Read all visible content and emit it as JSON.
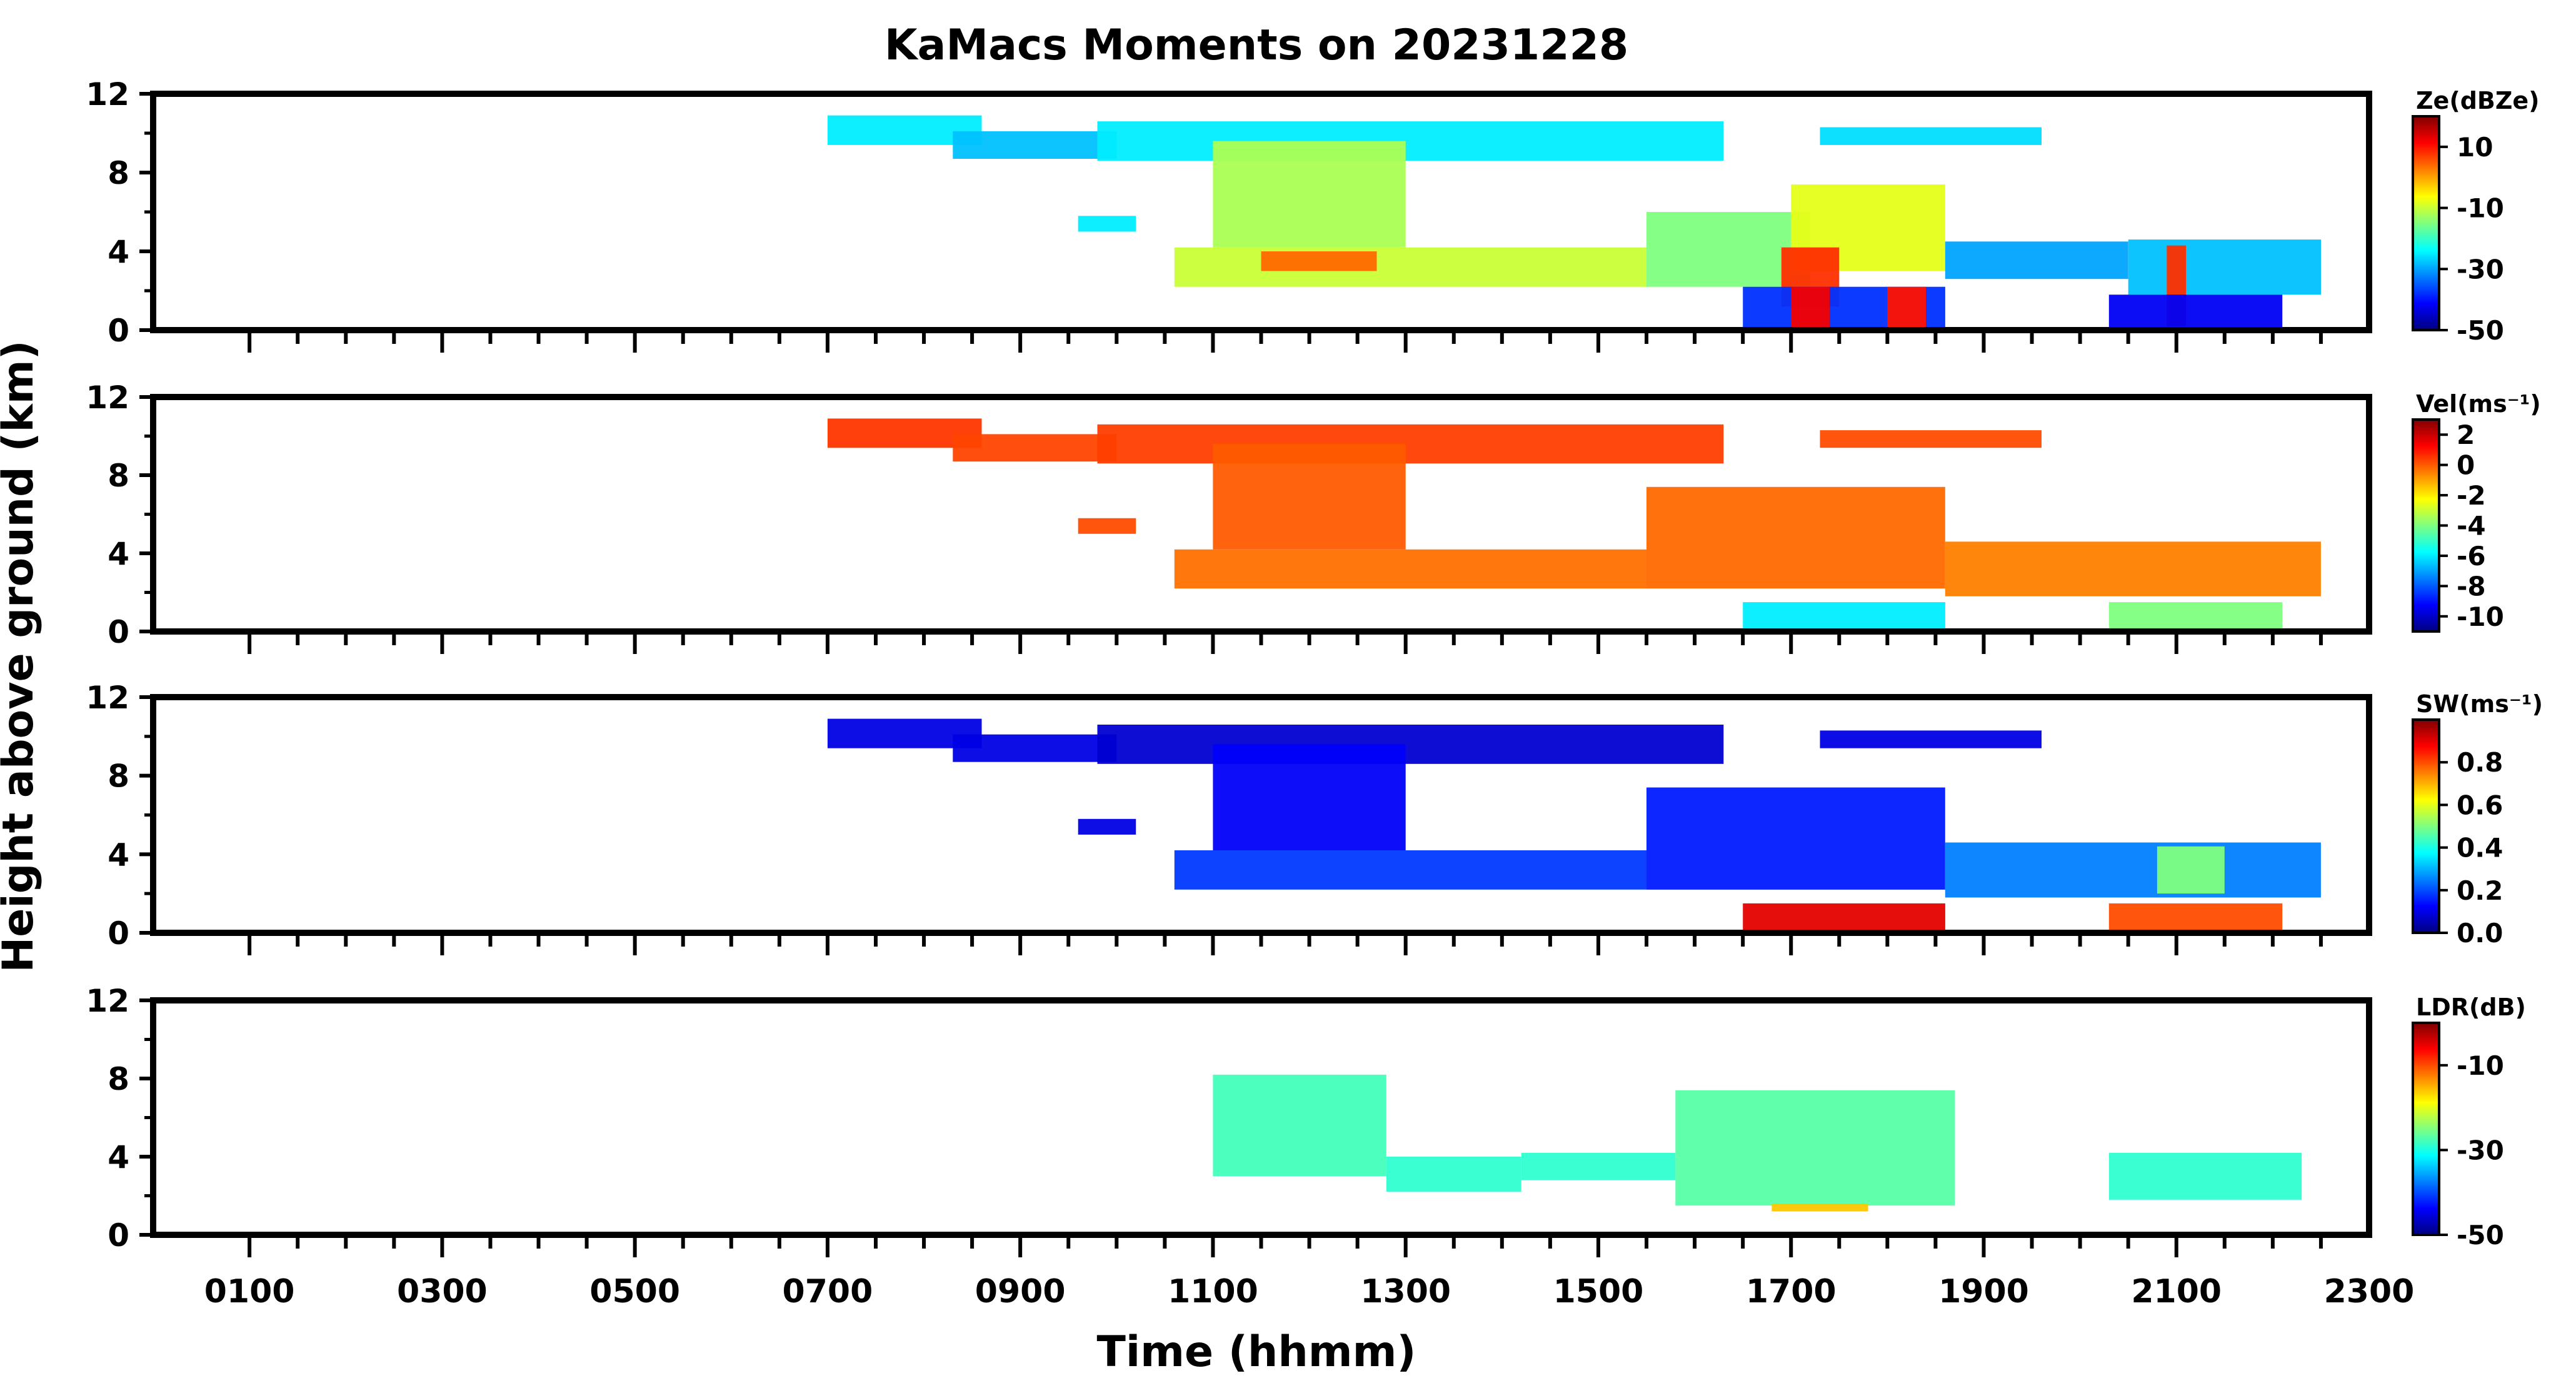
{
  "chart_data": {
    "type": "heatmap",
    "title": "KaMacs Moments on 20231228",
    "xlabel": "Time (hhmm)",
    "ylabel": "Height above ground (km)",
    "x_tick_labels": [
      "0100",
      "0300",
      "0500",
      "0700",
      "0900",
      "1100",
      "1300",
      "1500",
      "1700",
      "1900",
      "2100",
      "2300"
    ],
    "x_tick_hours": [
      1,
      3,
      5,
      7,
      9,
      11,
      13,
      15,
      17,
      19,
      21,
      23
    ],
    "xlim_hours": [
      0,
      23
    ],
    "ylim_km": [
      0,
      12
    ],
    "y_tick_labels": [
      "0",
      "4",
      "8",
      "12"
    ],
    "y_tick_values": [
      0,
      4,
      8,
      12
    ],
    "colormap": "jet",
    "colormap_colors": [
      "#00007f",
      "#0000ff",
      "#007fff",
      "#00ffff",
      "#7fff7f",
      "#ffff00",
      "#ff7f00",
      "#ff0000",
      "#7f0000"
    ],
    "panels": [
      {
        "name": "reflectivity",
        "colorbar_label": "Ze(dBZe)",
        "vmin": -50,
        "vmax": 20,
        "colorbar_ticks": [
          -50,
          -30,
          -10,
          10
        ],
        "colorbar_tick_labels": [
          "-50",
          "-30",
          "-10",
          "10"
        ],
        "echoes": [
          {
            "t0": 7.0,
            "t1": 8.6,
            "z0": 9.4,
            "z1": 10.9,
            "v": -25
          },
          {
            "t0": 8.3,
            "t1": 10.0,
            "z0": 8.7,
            "z1": 10.1,
            "v": -28
          },
          {
            "t0": 9.8,
            "t1": 16.3,
            "z0": 8.6,
            "z1": 10.6,
            "v": -25
          },
          {
            "t0": 11.0,
            "t1": 13.0,
            "z0": 4.2,
            "z1": 9.6,
            "v": -12
          },
          {
            "t0": 10.6,
            "t1": 15.5,
            "z0": 2.2,
            "z1": 4.2,
            "v": -10
          },
          {
            "t0": 11.5,
            "t1": 12.7,
            "z0": 3.0,
            "z1": 4.0,
            "v": 4
          },
          {
            "t0": 15.5,
            "t1": 17.2,
            "z0": 2.2,
            "z1": 6.0,
            "v": -15
          },
          {
            "t0": 17.0,
            "t1": 18.6,
            "z0": 3.0,
            "z1": 7.4,
            "v": -8
          },
          {
            "t0": 16.9,
            "t1": 17.5,
            "z0": 1.2,
            "z1": 4.2,
            "v": 8
          },
          {
            "t0": 16.5,
            "t1": 18.6,
            "z0": 0.1,
            "z1": 2.2,
            "v": -38
          },
          {
            "t0": 17.0,
            "t1": 17.4,
            "z0": 0.1,
            "z1": 2.2,
            "v": 12
          },
          {
            "t0": 18.0,
            "t1": 18.4,
            "z0": 0.1,
            "z1": 2.2,
            "v": 10
          },
          {
            "t0": 18.6,
            "t1": 20.5,
            "z0": 2.6,
            "z1": 4.5,
            "v": -30
          },
          {
            "t0": 20.5,
            "t1": 22.5,
            "z0": 1.8,
            "z1": 4.6,
            "v": -28
          },
          {
            "t0": 20.9,
            "t1": 21.1,
            "z0": 0.2,
            "z1": 4.3,
            "v": 8
          },
          {
            "t0": 20.3,
            "t1": 22.1,
            "z0": 0.1,
            "z1": 1.8,
            "v": -42
          },
          {
            "t0": 17.3,
            "t1": 19.6,
            "z0": 9.4,
            "z1": 10.3,
            "v": -26
          },
          {
            "t0": 9.6,
            "t1": 10.2,
            "z0": 5.0,
            "z1": 5.8,
            "v": -25
          }
        ]
      },
      {
        "name": "velocity",
        "colorbar_label": "Vel(ms⁻¹)",
        "vmin": -11,
        "vmax": 3,
        "colorbar_ticks": [
          -10,
          -8,
          -6,
          -4,
          -2,
          0,
          2
        ],
        "colorbar_tick_labels": [
          "-10",
          "-8",
          "-6",
          "-4",
          "-2",
          "0",
          "2"
        ],
        "echoes": [
          {
            "t0": 7.0,
            "t1": 8.6,
            "z0": 9.4,
            "z1": 10.9,
            "v": 0.5
          },
          {
            "t0": 8.3,
            "t1": 10.0,
            "z0": 8.7,
            "z1": 10.1,
            "v": 0.3
          },
          {
            "t0": 9.8,
            "t1": 16.3,
            "z0": 8.6,
            "z1": 10.6,
            "v": 0.4
          },
          {
            "t0": 11.0,
            "t1": 13.0,
            "z0": 4.2,
            "z1": 9.6,
            "v": 0.0
          },
          {
            "t0": 10.6,
            "t1": 15.5,
            "z0": 2.2,
            "z1": 4.2,
            "v": -0.3
          },
          {
            "t0": 15.5,
            "t1": 18.6,
            "z0": 2.2,
            "z1": 7.4,
            "v": -0.2
          },
          {
            "t0": 16.5,
            "t1": 18.6,
            "z0": 0.1,
            "z1": 1.5,
            "v": -6
          },
          {
            "t0": 18.6,
            "t1": 22.5,
            "z0": 1.8,
            "z1": 4.6,
            "v": -0.5
          },
          {
            "t0": 20.3,
            "t1": 22.1,
            "z0": 0.1,
            "z1": 1.5,
            "v": -4
          },
          {
            "t0": 17.3,
            "t1": 19.6,
            "z0": 9.4,
            "z1": 10.3,
            "v": 0.2
          },
          {
            "t0": 9.6,
            "t1": 10.2,
            "z0": 5.0,
            "z1": 5.8,
            "v": 0.2
          }
        ]
      },
      {
        "name": "spectrum_width",
        "colorbar_label": "SW(ms⁻¹)",
        "vmin": 0.0,
        "vmax": 1.0,
        "colorbar_ticks": [
          0.0,
          0.2,
          0.4,
          0.6,
          0.8
        ],
        "colorbar_tick_labels": [
          "0.0",
          "0.2",
          "0.4",
          "0.6",
          "0.8"
        ],
        "echoes": [
          {
            "t0": 7.0,
            "t1": 8.6,
            "z0": 9.4,
            "z1": 10.9,
            "v": 0.1
          },
          {
            "t0": 8.3,
            "t1": 10.0,
            "z0": 8.7,
            "z1": 10.1,
            "v": 0.1
          },
          {
            "t0": 9.8,
            "t1": 16.3,
            "z0": 8.6,
            "z1": 10.6,
            "v": 0.08
          },
          {
            "t0": 11.0,
            "t1": 13.0,
            "z0": 4.2,
            "z1": 9.6,
            "v": 0.12
          },
          {
            "t0": 10.6,
            "t1": 15.5,
            "z0": 2.2,
            "z1": 4.2,
            "v": 0.18
          },
          {
            "t0": 15.5,
            "t1": 18.6,
            "z0": 2.2,
            "z1": 7.4,
            "v": 0.15
          },
          {
            "t0": 16.5,
            "t1": 18.6,
            "z0": 0.1,
            "z1": 1.5,
            "v": 0.9
          },
          {
            "t0": 18.6,
            "t1": 22.5,
            "z0": 1.8,
            "z1": 4.6,
            "v": 0.25
          },
          {
            "t0": 20.8,
            "t1": 21.5,
            "z0": 2.0,
            "z1": 4.4,
            "v": 0.5
          },
          {
            "t0": 20.3,
            "t1": 22.1,
            "z0": 0.1,
            "z1": 1.5,
            "v": 0.8
          },
          {
            "t0": 17.3,
            "t1": 19.6,
            "z0": 9.4,
            "z1": 10.3,
            "v": 0.1
          },
          {
            "t0": 9.6,
            "t1": 10.2,
            "z0": 5.0,
            "z1": 5.8,
            "v": 0.1
          }
        ]
      },
      {
        "name": "linear_depolarization_ratio",
        "colorbar_label": "LDR(dB)",
        "vmin": -50,
        "vmax": 0,
        "colorbar_ticks": [
          -50,
          -30,
          -10
        ],
        "colorbar_tick_labels": [
          "-50",
          "-30",
          "-10"
        ],
        "echoes": [
          {
            "t0": 11.0,
            "t1": 12.8,
            "z0": 3.0,
            "z1": 8.2,
            "v": -28
          },
          {
            "t0": 12.8,
            "t1": 14.2,
            "z0": 2.2,
            "z1": 4.0,
            "v": -29
          },
          {
            "t0": 14.2,
            "t1": 15.8,
            "z0": 2.8,
            "z1": 4.2,
            "v": -29
          },
          {
            "t0": 15.8,
            "t1": 18.7,
            "z0": 1.5,
            "z1": 7.4,
            "v": -27
          },
          {
            "t0": 16.8,
            "t1": 17.8,
            "z0": 1.2,
            "z1": 1.6,
            "v": -16
          },
          {
            "t0": 20.3,
            "t1": 22.3,
            "z0": 1.8,
            "z1": 4.2,
            "v": -29
          }
        ]
      }
    ]
  }
}
